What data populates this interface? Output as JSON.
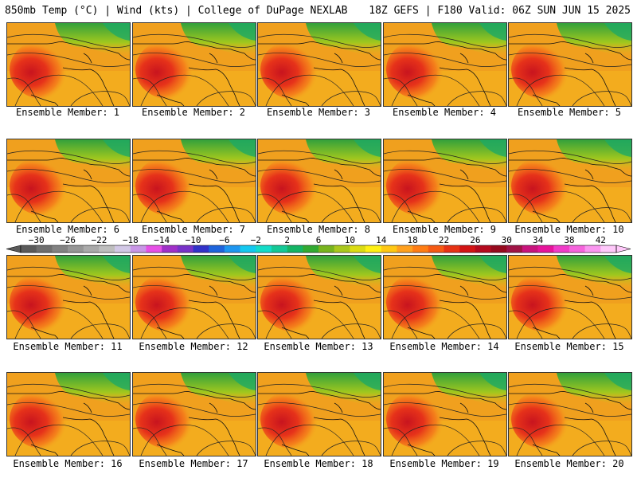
{
  "header": {
    "left": "850mb Temp (°C) | Wind (kts) | College of DuPage NEXLAB",
    "right": "18Z GEFS | F180 Valid: 06Z SUN JUN 15 2025"
  },
  "panels": [
    {
      "label": "Ensemble Member: 1"
    },
    {
      "label": "Ensemble Member: 2"
    },
    {
      "label": "Ensemble Member: 3"
    },
    {
      "label": "Ensemble Member: 4"
    },
    {
      "label": "Ensemble Member: 5"
    },
    {
      "label": "Ensemble Member: 6"
    },
    {
      "label": "Ensemble Member: 7"
    },
    {
      "label": "Ensemble Member: 8"
    },
    {
      "label": "Ensemble Member: 9"
    },
    {
      "label": "Ensemble Member: 10"
    },
    {
      "label": "Ensemble Member: 11"
    },
    {
      "label": "Ensemble Member: 12"
    },
    {
      "label": "Ensemble Member: 13"
    },
    {
      "label": "Ensemble Member: 14"
    },
    {
      "label": "Ensemble Member: 15"
    },
    {
      "label": "Ensemble Member: 16"
    },
    {
      "label": "Ensemble Member: 17"
    },
    {
      "label": "Ensemble Member: 18"
    },
    {
      "label": "Ensemble Member: 19"
    },
    {
      "label": "Ensemble Member: 20"
    }
  ],
  "colorbar": {
    "labels": [
      "-30",
      "-26",
      "-22",
      "-18",
      "-14",
      "-10",
      "-6",
      "-2",
      "2",
      "6",
      "10",
      "14",
      "18",
      "22",
      "26",
      "30",
      "34",
      "38",
      "42"
    ],
    "colors": [
      "#5a5a5a",
      "#6e6e6e",
      "#828282",
      "#969696",
      "#aaaaaa",
      "#bebebe",
      "#d2c8e6",
      "#c896e6",
      "#e650e6",
      "#a030c8",
      "#7832c8",
      "#3232c8",
      "#1e64dc",
      "#1e96f0",
      "#14c8f0",
      "#14dcc8",
      "#14c896",
      "#14b464",
      "#32aa32",
      "#78b41e",
      "#aac81e",
      "#dcdc14",
      "#fff014",
      "#ffc814",
      "#ffa01e",
      "#ff7d14",
      "#f55a14",
      "#e63214",
      "#d21414",
      "#b40a1e",
      "#960a1e",
      "#a01446",
      "#c8147d",
      "#e6149b",
      "#f03cc8",
      "#f564dc",
      "#fa96f0",
      "#ffc8fa"
    ]
  }
}
